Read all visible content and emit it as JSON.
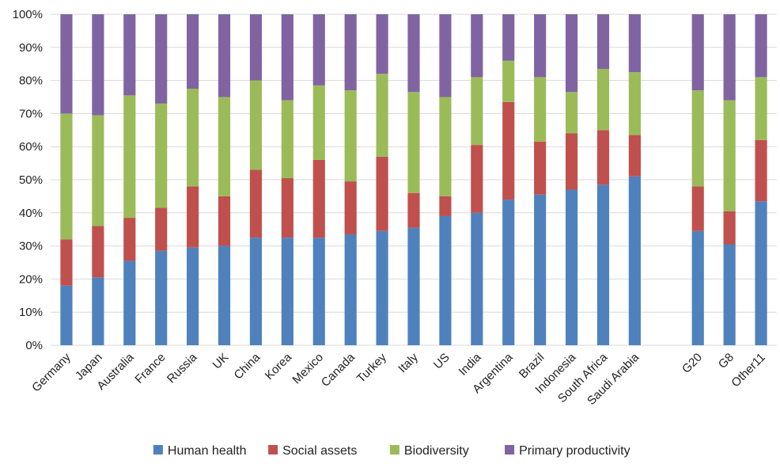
{
  "chart_data": {
    "type": "bar",
    "stacked": true,
    "categories": [
      "Germany",
      "Japan",
      "Australia",
      "France",
      "Russia",
      "UK",
      "China",
      "Korea",
      "Mexico",
      "Canada",
      "Turkey",
      "Italy",
      "US",
      "India",
      "Argentina",
      "Brazil",
      "Indonesia",
      "South Africa",
      "Saudi Arabia",
      "",
      "G20",
      "G8",
      "Other11"
    ],
    "series": [
      {
        "name": "Human health",
        "color": "#4F81BD",
        "values": [
          18,
          20.5,
          25.5,
          28.5,
          29.5,
          30,
          32.5,
          32.5,
          32.5,
          33.5,
          34.5,
          35.5,
          39,
          40,
          44,
          45.5,
          47,
          48.5,
          51,
          0,
          34.5,
          30.5,
          43.5
        ]
      },
      {
        "name": "Social assets",
        "color": "#C0504D",
        "values": [
          14,
          15.5,
          13,
          13,
          18.5,
          15,
          20.5,
          18,
          23.5,
          16,
          22.5,
          10.5,
          6,
          20.5,
          29.5,
          16,
          17,
          16.5,
          12.5,
          0,
          13.5,
          10,
          18.5
        ]
      },
      {
        "name": "Biodiversity",
        "color": "#9BBB59",
        "values": [
          38,
          33.5,
          37,
          31.5,
          29.5,
          30,
          27,
          23.5,
          22.5,
          27.5,
          25,
          30.5,
          30,
          20.5,
          12.5,
          19.5,
          12.5,
          18.5,
          19,
          0,
          29,
          33.5,
          19
        ]
      },
      {
        "name": "Primary productivity",
        "color": "#8064A2",
        "values": [
          30,
          30.5,
          24.5,
          27,
          22.5,
          25,
          20,
          26,
          21.5,
          23,
          18,
          23.5,
          25,
          19,
          14,
          19,
          23.5,
          16.5,
          17.5,
          0,
          23,
          26,
          19
        ]
      }
    ],
    "ylim": [
      0,
      100
    ],
    "yticks": [
      "0%",
      "10%",
      "20%",
      "30%",
      "40%",
      "50%",
      "60%",
      "70%",
      "80%",
      "90%",
      "100%"
    ],
    "grid": true,
    "legend_position": "bottom"
  }
}
